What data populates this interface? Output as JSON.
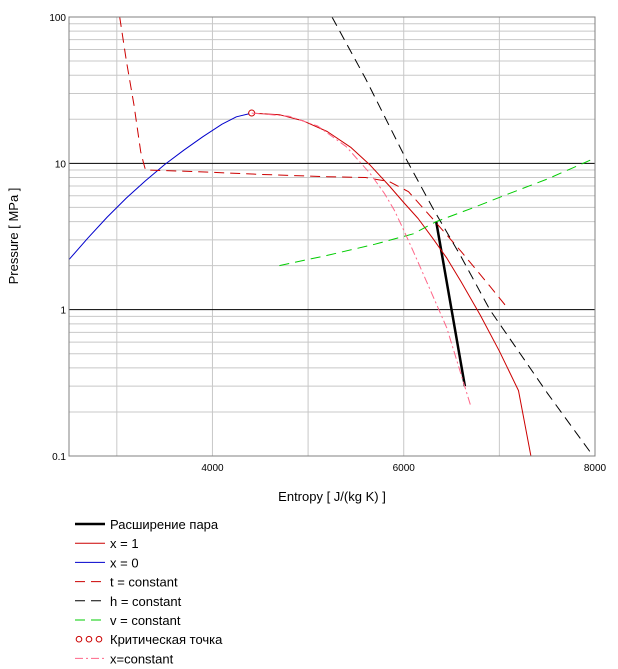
{
  "chart_data": {
    "type": "line",
    "title": "",
    "xlabel": "Entropy [ J/(kg K) ]",
    "ylabel": "Pressure [ MPa ]",
    "xlim": [
      2500,
      8000
    ],
    "ylim": [
      0.1,
      100
    ],
    "yscale": "log",
    "grid": true,
    "x_ticks": [
      {
        "v": 4000,
        "label": "4000"
      },
      {
        "v": 6000,
        "label": "6000"
      },
      {
        "v": 8000,
        "label": "8000"
      }
    ],
    "y_ticks": [
      {
        "v": 0.1,
        "label": "0.1"
      },
      {
        "v": 1,
        "label": "1"
      },
      {
        "v": 10,
        "label": "10"
      },
      {
        "v": 100,
        "label": "100"
      }
    ],
    "legend_position": "bottom",
    "series": [
      {
        "name": "Расширение пара",
        "color": "#000000",
        "dash": "solid",
        "width": 2.5,
        "marker": "none",
        "x": [
          6340,
          6640
        ],
        "y": [
          4.0,
          0.3
        ]
      },
      {
        "name": "x = 1",
        "color": "#cc0000",
        "dash": "solid",
        "width": 1,
        "marker": "none",
        "x": [
          4410,
          4700,
          4950,
          5200,
          5450,
          5650,
          5850,
          6000,
          6150,
          6300,
          6450,
          6600,
          6800,
          7000,
          7200,
          7330
        ],
        "y": [
          22.06,
          21.5,
          19.5,
          16.5,
          12.8,
          9.7,
          7.0,
          5.4,
          4.2,
          3.1,
          2.25,
          1.55,
          0.92,
          0.52,
          0.28,
          0.1
        ]
      },
      {
        "name": "x = 0",
        "color": "#0000cc",
        "dash": "solid",
        "width": 1,
        "marker": "none",
        "x": [
          2500,
          2700,
          2900,
          3100,
          3300,
          3500,
          3700,
          3900,
          4100,
          4250,
          4410
        ],
        "y": [
          2.2,
          3.1,
          4.3,
          5.8,
          7.6,
          9.8,
          12.3,
          15.2,
          18.5,
          20.8,
          22.06
        ]
      },
      {
        "name": "t = constant",
        "color": "#cc0000",
        "dash": "10,6",
        "width": 1,
        "marker": "none",
        "x": [
          3030,
          3100,
          3180,
          3250,
          3280,
          3300,
          3800,
          4500,
          5200,
          5600,
          5850,
          6050,
          6300,
          6600,
          6900,
          7100
        ],
        "y": [
          100,
          50,
          25,
          12,
          10,
          9.0,
          8.8,
          8.4,
          8.1,
          8.0,
          7.5,
          6.4,
          4.2,
          2.5,
          1.45,
          1.0
        ]
      },
      {
        "name": "h = constant",
        "color": "#000000",
        "dash": "10,6",
        "width": 1,
        "marker": "none",
        "x": [
          5250,
          5600,
          6000,
          6300,
          6600,
          6900,
          7200,
          7500,
          7800,
          7980
        ],
        "y": [
          100,
          38,
          11.5,
          5.0,
          2.3,
          1.0,
          0.52,
          0.27,
          0.145,
          0.1
        ]
      },
      {
        "name": "v = constant",
        "color": "#00cc00",
        "dash": "10,6",
        "width": 1,
        "marker": "none",
        "x": [
          4700,
          5200,
          5700,
          6100,
          6340,
          6700,
          7100,
          7500,
          7950
        ],
        "y": [
          2.0,
          2.35,
          2.8,
          3.3,
          4.0,
          4.9,
          6.2,
          7.8,
          10.5
        ]
      },
      {
        "name": "Критическая точка",
        "color": "#cc0000",
        "dash": "none",
        "width": 1,
        "marker": "circle",
        "x": [
          4410
        ],
        "y": [
          22.06
        ]
      },
      {
        "name": "x=constant",
        "color": "#ff6688",
        "dash": "8,3,2,3",
        "width": 1,
        "marker": "none",
        "x": [
          4410,
          4800,
          5100,
          5400,
          5650,
          5800,
          5900,
          6000,
          6100,
          6250,
          6450,
          6700
        ],
        "y": [
          22.06,
          21.0,
          18.0,
          13.0,
          8.5,
          6.2,
          4.8,
          3.5,
          2.5,
          1.5,
          0.75,
          0.22
        ]
      }
    ]
  }
}
